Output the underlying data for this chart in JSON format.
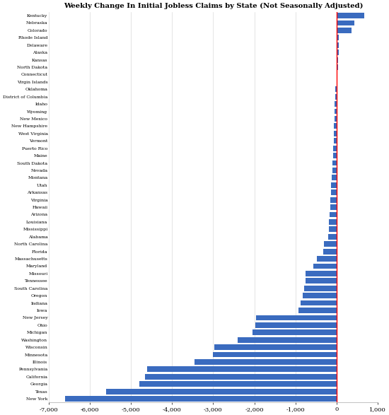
{
  "title": "Weekly Change In Initial Jobless Claims by State (Not Seasonally Adjusted)",
  "xlim": [
    -7000,
    1000
  ],
  "xticks": [
    -7000,
    -6000,
    -5000,
    -4000,
    -3000,
    -2000,
    -1000,
    0,
    1000
  ],
  "bar_color": "#3a6bbf",
  "vline_color": "red",
  "states": [
    "Kentucky",
    "Nebraska",
    "Colorado",
    "Rhode Island",
    "Delaware",
    "Alaska",
    "Kansas",
    "North Dakota",
    "Connecticut",
    "Virgin Islands",
    "Oklahoma",
    "District of Columbia",
    "Idaho",
    "Wyoming",
    "New Mexico",
    "New Hampshire",
    "West Virginia",
    "Vermont",
    "Puerto Rico",
    "Maine",
    "South Dakota",
    "Nevada",
    "Montana",
    "Utah",
    "Arkansas",
    "Virginia",
    "Hawaii",
    "Arizona",
    "Louisiana",
    "Mississippi",
    "Alabama",
    "North Carolina",
    "Florida",
    "Massachusetts",
    "Maryland",
    "Missouri",
    "Tennessee",
    "South Carolina",
    "Oregon",
    "Indiana",
    "Iowa",
    "New Jersey",
    "Ohio",
    "Michigan",
    "Washington",
    "Wisconsin",
    "Minnesota",
    "Illinois",
    "Pennsylvania",
    "California",
    "Georgia",
    "Texas",
    "New York"
  ],
  "values": [
    680,
    430,
    370,
    60,
    55,
    50,
    45,
    30,
    25,
    20,
    -30,
    -35,
    -40,
    -45,
    -55,
    -60,
    -65,
    -70,
    -80,
    -90,
    -95,
    -100,
    -110,
    -130,
    -140,
    -150,
    -160,
    -170,
    -180,
    -190,
    -200,
    -310,
    -330,
    -480,
    -560,
    -750,
    -760,
    -780,
    -820,
    -870,
    -920,
    -1950,
    -1980,
    -2050,
    -2400,
    -2980,
    -3000,
    -3450,
    -4600,
    -4650,
    -4800,
    -5600,
    -6600
  ]
}
